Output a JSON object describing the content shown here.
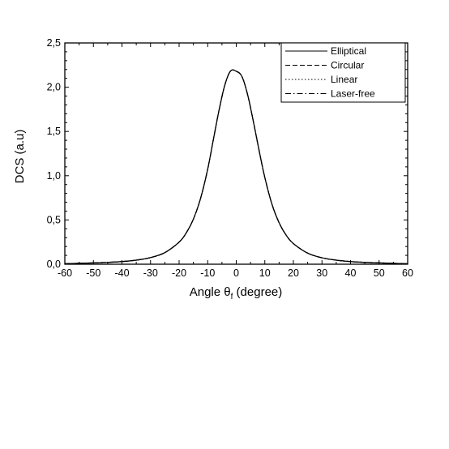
{
  "chart_data": {
    "type": "line",
    "title": "",
    "xlabel": "Angle θ",
    "xlabel_sub": "f",
    "xlabel_suffix": " (degree)",
    "ylabel": "DCS (a.u)",
    "xlim": [
      -60,
      60
    ],
    "ylim": [
      0,
      2.5
    ],
    "xticks": [
      -60,
      -50,
      -40,
      -30,
      -20,
      -10,
      0,
      10,
      20,
      30,
      40,
      50,
      60
    ],
    "xtick_labels": [
      "-60",
      "-50",
      "-40",
      "-30",
      "-20",
      "-10",
      "0",
      "10",
      "20",
      "30",
      "40",
      "50",
      "60"
    ],
    "yticks": [
      0,
      0.5,
      1.0,
      1.5,
      2.0,
      2.5
    ],
    "ytick_labels": [
      "0,0",
      "0,5",
      "1,0",
      "1,5",
      "2,0",
      "2,5"
    ],
    "grid": false,
    "legend_position": "top-right",
    "x": [
      -60,
      -55,
      -50,
      -45,
      -40,
      -35,
      -30,
      -25,
      -20,
      -17.5,
      -15,
      -12.5,
      -10,
      -8,
      -6,
      -4,
      -2,
      0,
      2,
      4,
      6,
      8,
      10,
      12.5,
      15,
      17.5,
      20,
      25,
      30,
      35,
      40,
      45,
      50,
      55,
      60
    ],
    "series": [
      {
        "name": "Elliptical",
        "style": "solid",
        "values": [
          0.005,
          0.01,
          0.015,
          0.021,
          0.03,
          0.046,
          0.075,
          0.131,
          0.25,
          0.354,
          0.51,
          0.743,
          1.073,
          1.41,
          1.744,
          2.024,
          2.183,
          2.18,
          2.12,
          1.913,
          1.611,
          1.285,
          0.98,
          0.678,
          0.468,
          0.327,
          0.233,
          0.125,
          0.073,
          0.046,
          0.03,
          0.021,
          0.015,
          0.01,
          0.005
        ]
      },
      {
        "name": "Circular",
        "style": "dashed",
        "values": [
          0.005,
          0.01,
          0.015,
          0.021,
          0.03,
          0.046,
          0.075,
          0.131,
          0.25,
          0.354,
          0.51,
          0.743,
          1.073,
          1.41,
          1.744,
          2.024,
          2.183,
          2.18,
          2.12,
          1.913,
          1.611,
          1.285,
          0.98,
          0.678,
          0.468,
          0.327,
          0.233,
          0.125,
          0.073,
          0.046,
          0.03,
          0.021,
          0.015,
          0.01,
          0.005
        ]
      },
      {
        "name": "Linear",
        "style": "dotted",
        "values": [
          0.005,
          0.01,
          0.015,
          0.021,
          0.03,
          0.046,
          0.075,
          0.131,
          0.25,
          0.354,
          0.51,
          0.743,
          1.073,
          1.41,
          1.744,
          2.024,
          2.183,
          2.18,
          2.12,
          1.913,
          1.611,
          1.285,
          0.98,
          0.678,
          0.468,
          0.327,
          0.233,
          0.125,
          0.073,
          0.046,
          0.03,
          0.021,
          0.015,
          0.01,
          0.005
        ]
      },
      {
        "name": "Laser-free",
        "style": "dashdot",
        "values": [
          0.005,
          0.01,
          0.015,
          0.021,
          0.03,
          0.046,
          0.075,
          0.131,
          0.25,
          0.354,
          0.51,
          0.743,
          1.073,
          1.41,
          1.744,
          2.024,
          2.183,
          2.18,
          2.12,
          1.913,
          1.611,
          1.285,
          0.98,
          0.678,
          0.468,
          0.327,
          0.233,
          0.125,
          0.073,
          0.046,
          0.03,
          0.021,
          0.015,
          0.01,
          0.005
        ]
      }
    ],
    "colors": {
      "line": "#000000",
      "axis": "#000000",
      "background": "#ffffff"
    }
  }
}
